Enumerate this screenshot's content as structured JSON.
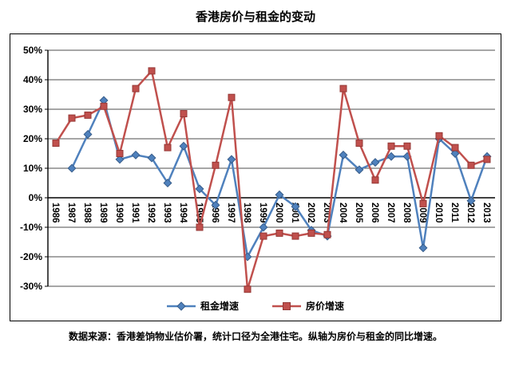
{
  "title": "香港房价与租金的变动",
  "caption": "数据来源：香港差饷物业估价署，统计口径为全港住宅。纵轴为房价与租金的同比增速。",
  "chart_data": {
    "type": "line",
    "title": "香港房价与租金的变动",
    "categories": [
      "1986",
      "1987",
      "1988",
      "1989",
      "1990",
      "1991",
      "1992",
      "1993",
      "1994",
      "1995",
      "1996",
      "1997",
      "1998",
      "1999",
      "2000",
      "2001",
      "2002",
      "2003",
      "2004",
      "2005",
      "2006",
      "2007",
      "2008",
      "2009",
      "2010",
      "2011",
      "2012",
      "2013"
    ],
    "series": [
      {
        "name": "租金增速",
        "color": "#4F81BD",
        "marker": "diamond",
        "values": [
          null,
          10,
          21.5,
          33,
          13,
          14.5,
          13.5,
          5,
          17.5,
          3,
          -2.5,
          13,
          -20,
          -10,
          1,
          -3,
          -11,
          -13,
          14.5,
          9.5,
          12,
          14,
          14,
          -17,
          20,
          15,
          -1,
          14
        ]
      },
      {
        "name": "房价增速",
        "color": "#C0504D",
        "marker": "square",
        "values": [
          18.5,
          27,
          28,
          31,
          15,
          37,
          43,
          17,
          28.5,
          -10,
          11,
          34,
          -31,
          -13,
          -12,
          -13,
          -12,
          -12.5,
          37,
          18.5,
          6,
          17.5,
          17.5,
          -2,
          21,
          17,
          11,
          13
        ]
      }
    ],
    "ylim": [
      -30,
      50
    ],
    "ytick_step": 10,
    "ytick_labels": [
      "50%",
      "40%",
      "30%",
      "20%",
      "10%",
      "0%",
      "-10%",
      "-20%",
      "-30%"
    ],
    "grid": true,
    "legend_position": "bottom",
    "x_axis_crosses_at": 0
  }
}
